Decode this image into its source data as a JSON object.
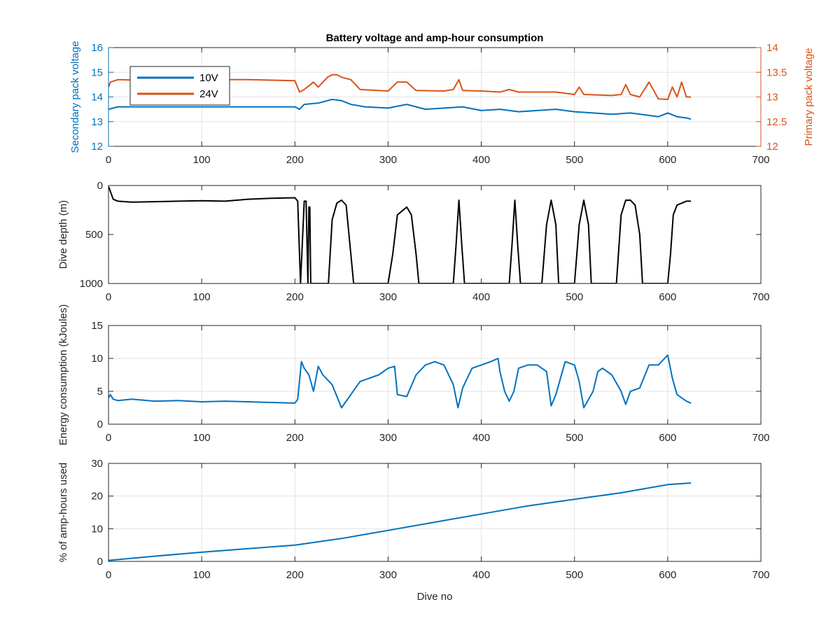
{
  "figure": {
    "title": "Battery voltage and amp-hour consumption",
    "xlabel": "Dive no"
  },
  "colors": {
    "blue": "#0072BD",
    "orange": "#D95319",
    "black": "#000000",
    "grid": "#e3e3e3",
    "axis": "#262626"
  },
  "chart_data": [
    {
      "type": "line",
      "title": "Battery voltage and amp-hour consumption",
      "xlabel": "",
      "ylabel": "Secondary pack voltage",
      "ylabel_right": "Primary pack voltage",
      "xlim": [
        0,
        700
      ],
      "ylim": [
        12,
        16
      ],
      "ylim_right": [
        12,
        14
      ],
      "xticks": [
        0,
        100,
        200,
        300,
        400,
        500,
        600,
        700
      ],
      "yticks": [
        12,
        13,
        14,
        15,
        16
      ],
      "yticks_right": [
        12,
        12.5,
        13,
        13.5,
        14
      ],
      "ytick_labels": [
        "12",
        "13",
        "14",
        "15",
        "16"
      ],
      "ytick_labels_right": [
        "12",
        "12.5",
        "13",
        "13.5",
        "14"
      ],
      "grid": true,
      "legend": "top-left",
      "series": [
        {
          "name": "10V",
          "axis": "left",
          "x": [
            0,
            10,
            25,
            50,
            75,
            100,
            125,
            150,
            175,
            200,
            205,
            210,
            225,
            240,
            250,
            260,
            275,
            300,
            320,
            340,
            360,
            380,
            400,
            420,
            440,
            460,
            480,
            500,
            520,
            540,
            560,
            580,
            590,
            600,
            610,
            620,
            625
          ],
          "y": [
            13.5,
            13.6,
            13.6,
            13.6,
            13.6,
            13.6,
            13.6,
            13.6,
            13.6,
            13.6,
            13.5,
            13.7,
            13.75,
            13.9,
            13.85,
            13.7,
            13.6,
            13.55,
            13.7,
            13.5,
            13.55,
            13.6,
            13.45,
            13.5,
            13.4,
            13.45,
            13.5,
            13.4,
            13.35,
            13.3,
            13.35,
            13.25,
            13.2,
            13.35,
            13.2,
            13.15,
            13.1
          ]
        },
        {
          "name": "24V",
          "axis": "right",
          "x": [
            0,
            2,
            10,
            50,
            100,
            150,
            200,
            205,
            210,
            220,
            225,
            235,
            240,
            245,
            250,
            260,
            270,
            300,
            310,
            320,
            330,
            360,
            370,
            376,
            380,
            400,
            420,
            430,
            440,
            460,
            480,
            500,
            505,
            510,
            540,
            550,
            555,
            560,
            570,
            580,
            590,
            600,
            605,
            610,
            615,
            620,
            625
          ],
          "y": [
            13.2,
            13.3,
            13.35,
            13.33,
            13.35,
            13.35,
            13.33,
            13.1,
            13.15,
            13.3,
            13.2,
            13.4,
            13.45,
            13.45,
            13.4,
            13.35,
            13.15,
            13.12,
            13.3,
            13.3,
            13.13,
            13.12,
            13.15,
            13.35,
            13.13,
            13.12,
            13.1,
            13.15,
            13.1,
            13.1,
            13.1,
            13.05,
            13.2,
            13.05,
            13.03,
            13.05,
            13.25,
            13.05,
            13.0,
            13.3,
            12.96,
            12.95,
            13.2,
            13.0,
            13.3,
            13.0,
            13.0
          ]
        }
      ]
    },
    {
      "type": "line",
      "xlabel": "",
      "ylabel": "Dive depth (m)",
      "xlim": [
        0,
        700
      ],
      "ylim": [
        0,
        1000
      ],
      "y_reversed": true,
      "xticks": [
        0,
        100,
        200,
        300,
        400,
        500,
        600,
        700
      ],
      "yticks": [
        0,
        500,
        1000
      ],
      "ytick_labels": [
        "0",
        "500",
        "1000"
      ],
      "grid": false,
      "series": [
        {
          "x": [
            0,
            2,
            5,
            10,
            25,
            50,
            75,
            100,
            125,
            150,
            175,
            200,
            203,
            206,
            210,
            212,
            214,
            215,
            216,
            217,
            218,
            236,
            240,
            245,
            250,
            255,
            260,
            263,
            300,
            305,
            310,
            320,
            325,
            330,
            333,
            370,
            373,
            376,
            379,
            382,
            430,
            433,
            436,
            439,
            442,
            465,
            470,
            475,
            480,
            483,
            500,
            505,
            510,
            515,
            518,
            545,
            550,
            555,
            560,
            565,
            570,
            573,
            600,
            603,
            606,
            610,
            620,
            625
          ],
          "y": [
            10,
            60,
            140,
            160,
            170,
            165,
            160,
            155,
            160,
            140,
            130,
            125,
            160,
            1000,
            160,
            160,
            1000,
            220,
            220,
            1000,
            1000,
            1000,
            350,
            180,
            150,
            200,
            700,
            1000,
            1000,
            700,
            300,
            220,
            300,
            700,
            1000,
            1000,
            600,
            150,
            600,
            1000,
            1000,
            600,
            150,
            600,
            1000,
            1000,
            400,
            150,
            400,
            1000,
            1000,
            400,
            150,
            400,
            1000,
            1000,
            300,
            150,
            150,
            200,
            500,
            1000,
            1000,
            700,
            300,
            200,
            160,
            160
          ]
        }
      ]
    },
    {
      "type": "line",
      "xlabel": "",
      "ylabel": "Energy consumption (kJoules)",
      "xlim": [
        0,
        700
      ],
      "ylim": [
        0,
        15
      ],
      "xticks": [
        0,
        100,
        200,
        300,
        400,
        500,
        600,
        700
      ],
      "yticks": [
        0,
        5,
        10,
        15
      ],
      "ytick_labels": [
        "0",
        "5",
        "10",
        "15"
      ],
      "grid": true,
      "series": [
        {
          "x": [
            0,
            2,
            5,
            10,
            25,
            50,
            75,
            100,
            125,
            150,
            175,
            200,
            203,
            207,
            210,
            215,
            220,
            225,
            230,
            240,
            250,
            260,
            270,
            290,
            300,
            307,
            310,
            320,
            330,
            340,
            350,
            360,
            370,
            375,
            380,
            390,
            400,
            410,
            418,
            420,
            425,
            430,
            435,
            440,
            450,
            460,
            470,
            475,
            480,
            490,
            500,
            505,
            510,
            520,
            525,
            530,
            540,
            550,
            555,
            560,
            570,
            580,
            590,
            600,
            605,
            610,
            620,
            625
          ],
          "y": [
            4.0,
            4.5,
            3.8,
            3.6,
            3.8,
            3.5,
            3.6,
            3.4,
            3.5,
            3.4,
            3.3,
            3.2,
            3.8,
            9.5,
            8.5,
            7.5,
            5.0,
            8.8,
            7.5,
            6.0,
            2.5,
            4.5,
            6.5,
            7.5,
            8.5,
            8.8,
            4.5,
            4.2,
            7.5,
            9.0,
            9.5,
            9.0,
            6.0,
            2.5,
            5.5,
            8.5,
            9.0,
            9.5,
            10.0,
            8.0,
            5.0,
            3.5,
            5.0,
            8.5,
            9.0,
            9.0,
            8.0,
            2.8,
            4.5,
            9.5,
            9.0,
            6.5,
            2.5,
            5.0,
            8.0,
            8.5,
            7.5,
            5.0,
            3.0,
            5.0,
            5.5,
            9.0,
            9.0,
            10.5,
            7.0,
            4.5,
            3.5,
            3.2
          ]
        }
      ]
    },
    {
      "type": "line",
      "xlabel": "Dive no",
      "ylabel": "% of amp-hours used",
      "xlim": [
        0,
        700
      ],
      "ylim": [
        0,
        30
      ],
      "xticks": [
        0,
        100,
        200,
        300,
        400,
        500,
        600,
        700
      ],
      "yticks": [
        0,
        10,
        20,
        30
      ],
      "ytick_labels": [
        "0",
        "10",
        "20",
        "30"
      ],
      "grid": true,
      "series": [
        {
          "x": [
            0,
            50,
            100,
            150,
            200,
            250,
            300,
            350,
            400,
            450,
            500,
            550,
            600,
            625
          ],
          "y": [
            0.3,
            1.6,
            2.8,
            3.9,
            5.0,
            7.0,
            9.5,
            12.0,
            14.5,
            17.0,
            19.0,
            21.0,
            23.5,
            24.0
          ]
        }
      ]
    }
  ]
}
